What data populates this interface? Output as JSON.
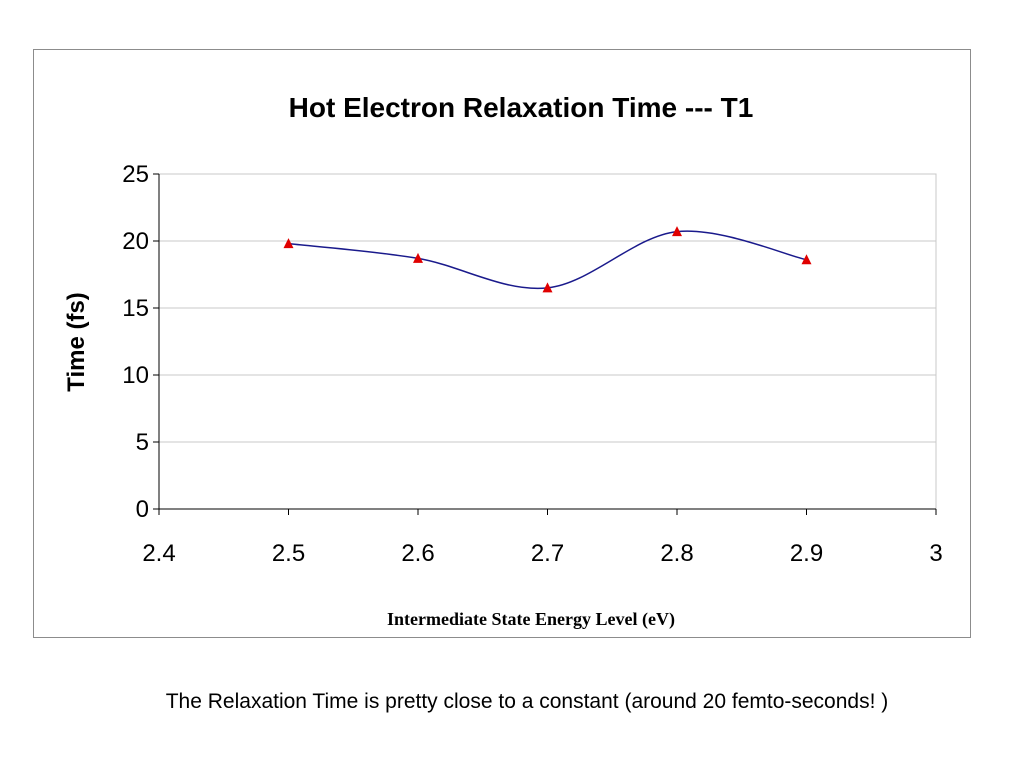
{
  "chart_data": {
    "type": "line",
    "title": "Hot Electron Relaxation Time --- T1",
    "xlabel": "Intermediate State Energy Level (eV)",
    "ylabel": "Time (fs)",
    "xlim": [
      2.4,
      3.0
    ],
    "ylim": [
      0,
      25
    ],
    "x_ticks": [
      2.4,
      2.5,
      2.6,
      2.7,
      2.8,
      2.9,
      3.0
    ],
    "x_tick_labels": [
      "2.4",
      "2.5",
      "2.6",
      "2.7",
      "2.8",
      "2.9",
      "3"
    ],
    "y_ticks": [
      0,
      5,
      10,
      15,
      20,
      25
    ],
    "y_tick_labels": [
      "0",
      "5",
      "10",
      "15",
      "20",
      "25"
    ],
    "grid": "horizontal",
    "legend": "none",
    "line_style": "smoothed",
    "series": [
      {
        "x": [
          2.5,
          2.6,
          2.7,
          2.8,
          2.9
        ],
        "values": [
          19.8,
          18.7,
          16.5,
          20.7,
          18.6
        ],
        "line_color": "#1a1a8c",
        "marker": "triangle",
        "marker_color": "#e00000"
      }
    ]
  },
  "caption": "The Relaxation Time is pretty close to a constant (around 20 femto-seconds! )"
}
